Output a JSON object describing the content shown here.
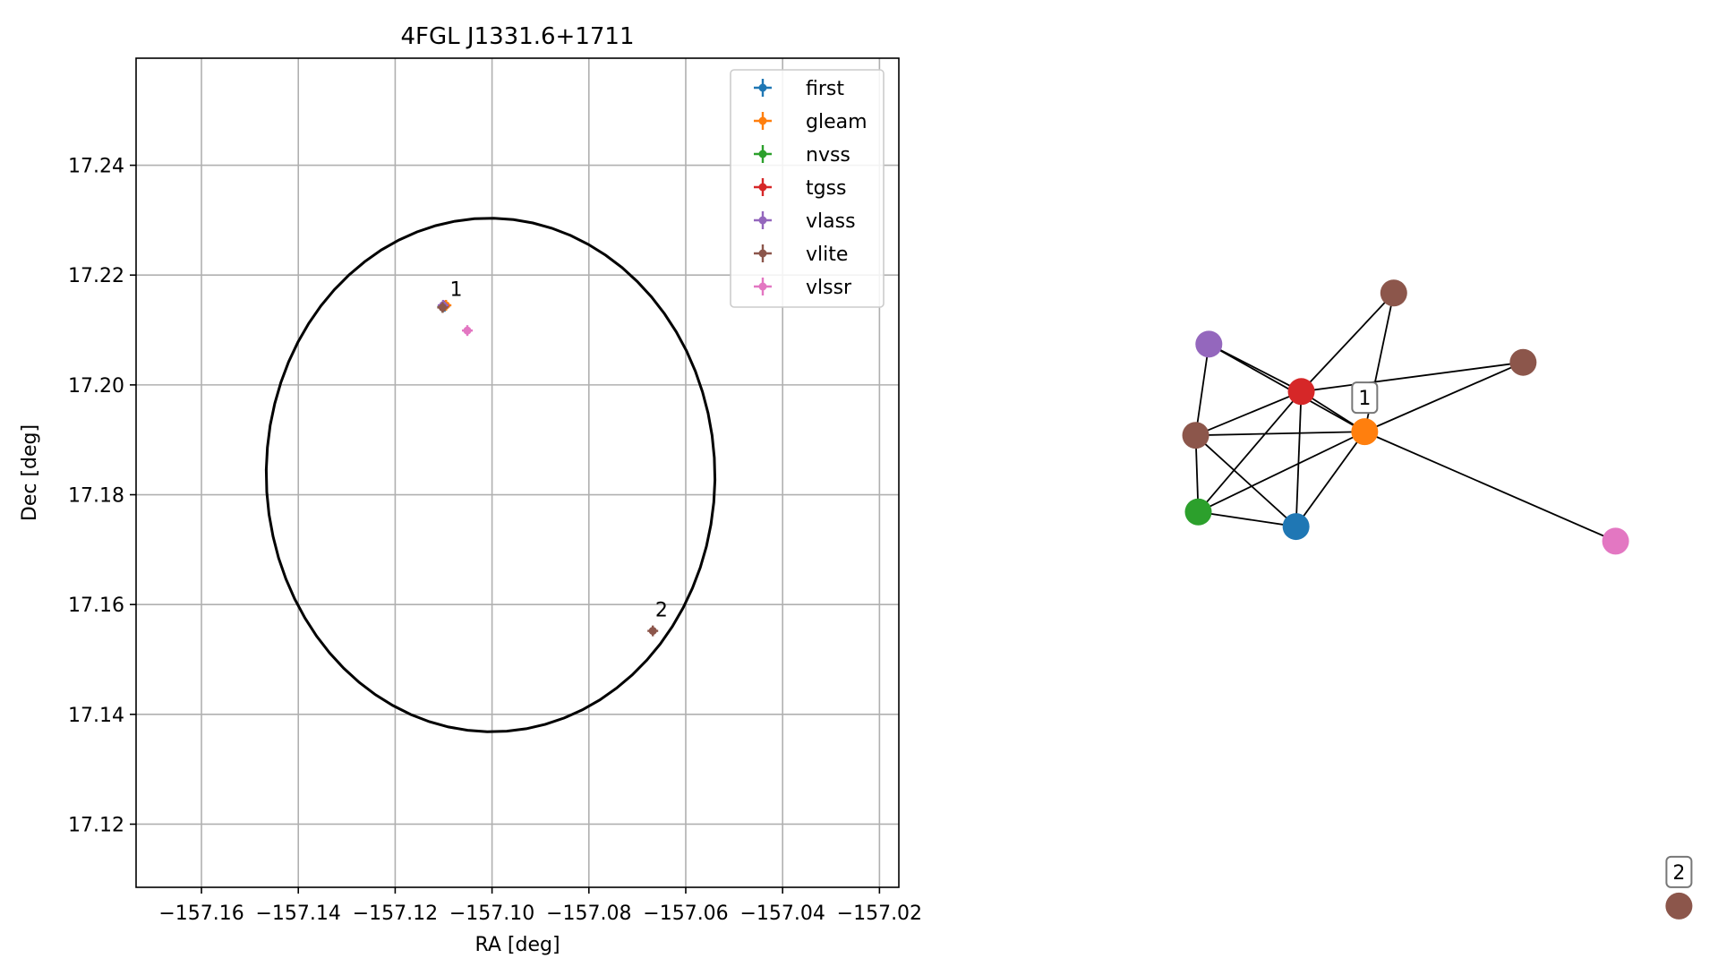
{
  "chart_data": [
    {
      "type": "scatter",
      "title": "4FGL J1331.6+1711",
      "xlabel": "RA [deg]",
      "ylabel": "Dec [deg]",
      "xlim": [
        -157.1735,
        -157.016
      ],
      "ylim": [
        17.1085,
        17.2595
      ],
      "x_ticks": [
        -157.16,
        -157.14,
        -157.12,
        -157.1,
        -157.08,
        -157.06,
        -157.04,
        -157.02
      ],
      "x_tick_labels": [
        "−157.16",
        "−157.14",
        "−157.12",
        "−157.10",
        "−157.08",
        "−157.06",
        "−157.04",
        "−157.02"
      ],
      "y_ticks": [
        17.12,
        17.14,
        17.16,
        17.18,
        17.2,
        17.22,
        17.24
      ],
      "y_tick_labels": [
        "17.12",
        "17.14",
        "17.16",
        "17.18",
        "17.20",
        "17.22",
        "17.24"
      ],
      "grid": true,
      "legend_position": "top-right",
      "series": [
        {
          "name": "first",
          "color": "#1f77b4",
          "points": [
            {
              "x": -157.1098,
              "y": 17.2143
            }
          ]
        },
        {
          "name": "gleam",
          "color": "#ff7f0e",
          "points": [
            {
              "x": -157.1095,
              "y": 17.2145
            }
          ]
        },
        {
          "name": "nvss",
          "color": "#2ca02c",
          "points": [
            {
              "x": -157.1102,
              "y": 17.2142
            }
          ]
        },
        {
          "name": "tgss",
          "color": "#d62728",
          "points": [
            {
              "x": -157.11,
              "y": 17.2144
            }
          ]
        },
        {
          "name": "vlass",
          "color": "#9467bd",
          "points": [
            {
              "x": -157.1101,
              "y": 17.2145
            }
          ]
        },
        {
          "name": "vlite",
          "color": "#8c564b",
          "points": [
            {
              "x": -157.1102,
              "y": 17.2141
            },
            {
              "x": -157.0668,
              "y": 17.1552
            }
          ]
        },
        {
          "name": "vlssr",
          "color": "#e377c2",
          "points": [
            {
              "x": -157.1051,
              "y": 17.2099
            }
          ]
        }
      ],
      "annotations": [
        {
          "text": "1",
          "x": -157.1087,
          "y": 17.2162
        },
        {
          "text": "2",
          "x": -157.0663,
          "y": 17.1578
        }
      ],
      "ellipse": {
        "center_ra": -157.1003,
        "center_dec": 17.1836,
        "semi_ra": 0.0463,
        "semi_dec": 0.0468,
        "tilt_deg": 14,
        "color": "#000000"
      }
    },
    {
      "type": "network",
      "nodes": [
        {
          "color": "#8c564b",
          "pos": [
            0.42,
            0.085
          ]
        },
        {
          "color": "#9467bd",
          "pos": [
            0.07,
            0.155
          ]
        },
        {
          "color": "#8c564b",
          "pos": [
            0.665,
            0.18
          ]
        },
        {
          "color": "#d62728",
          "pos": [
            0.245,
            0.22
          ]
        },
        {
          "color": "#ff7f0e",
          "pos": [
            0.365,
            0.275
          ],
          "label": "1"
        },
        {
          "color": "#8c564b",
          "pos": [
            0.045,
            0.28
          ]
        },
        {
          "color": "#2ca02c",
          "pos": [
            0.05,
            0.385
          ]
        },
        {
          "color": "#1f77b4",
          "pos": [
            0.235,
            0.405
          ]
        },
        {
          "color": "#e377c2",
          "pos": [
            0.84,
            0.425
          ]
        },
        {
          "color": "#8c564b",
          "pos": [
            0.96,
            0.925
          ],
          "label": "2"
        }
      ],
      "edges": [
        [
          0,
          3
        ],
        [
          0,
          4
        ],
        [
          1,
          3
        ],
        [
          1,
          4
        ],
        [
          1,
          5
        ],
        [
          2,
          3
        ],
        [
          2,
          4
        ],
        [
          3,
          4
        ],
        [
          3,
          5
        ],
        [
          3,
          6
        ],
        [
          3,
          7
        ],
        [
          4,
          5
        ],
        [
          4,
          6
        ],
        [
          4,
          7
        ],
        [
          4,
          8
        ],
        [
          5,
          6
        ],
        [
          5,
          7
        ],
        [
          6,
          7
        ]
      ]
    }
  ]
}
